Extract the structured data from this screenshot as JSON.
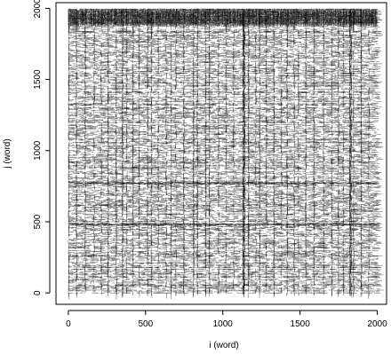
{
  "chart_data": {
    "type": "scatter",
    "title": "",
    "xlabel": "i (word)",
    "ylabel": "j (word)",
    "xlim": [
      -80,
      2060
    ],
    "ylim": [
      -80,
      2040
    ],
    "x_ticks": [
      0,
      500,
      1000,
      1500,
      2000
    ],
    "y_ticks": [
      0,
      500,
      1000,
      1500,
      2000
    ],
    "x_tick_labels": [
      "0",
      "500",
      "1000",
      "1500",
      "2000"
    ],
    "y_tick_labels": [
      "0",
      "500",
      "1000",
      "1500",
      "2000"
    ],
    "grid": false,
    "legend": "none",
    "point_color": "#000000",
    "description_of_pattern": "",
    "word_count": 2000,
    "block_boundaries": [
      1130,
      1820
    ],
    "periodic_spacing": 47
  }
}
